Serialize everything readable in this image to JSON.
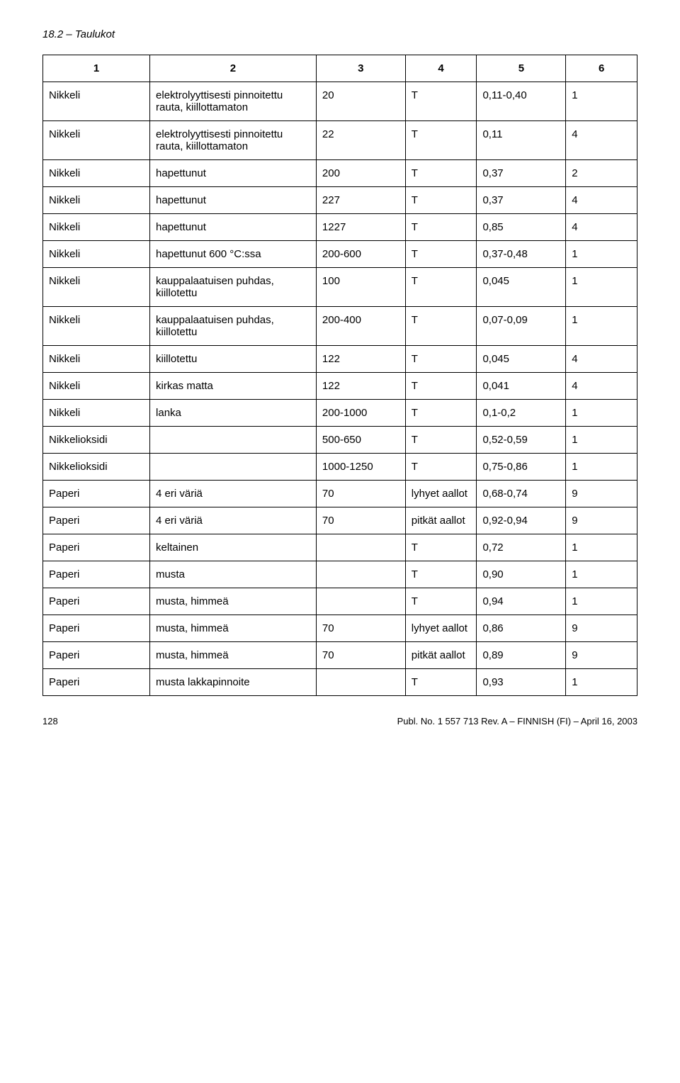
{
  "header": "18.2 – Taulukot",
  "table": {
    "columns": [
      "1",
      "2",
      "3",
      "4",
      "5",
      "6"
    ],
    "rows": [
      [
        "Nikkeli",
        "elektrolyyttisesti pinnoitettu rauta, kiillottamaton",
        "20",
        "T",
        "0,11-0,40",
        "1"
      ],
      [
        "Nikkeli",
        "elektrolyyttisesti pinnoitettu rauta, kiillottamaton",
        "22",
        "T",
        "0,11",
        "4"
      ],
      [
        "Nikkeli",
        "hapettunut",
        "200",
        "T",
        "0,37",
        "2"
      ],
      [
        "Nikkeli",
        "hapettunut",
        "227",
        "T",
        "0,37",
        "4"
      ],
      [
        "Nikkeli",
        "hapettunut",
        "1227",
        "T",
        "0,85",
        "4"
      ],
      [
        "Nikkeli",
        "hapettunut 600 °C:ssa",
        "200-600",
        "T",
        "0,37-0,48",
        "1"
      ],
      [
        "Nikkeli",
        "kauppalaatuisen puhdas, kiillotettu",
        "100",
        "T",
        "0,045",
        "1"
      ],
      [
        "Nikkeli",
        "kauppalaatuisen puhdas, kiillotettu",
        "200-400",
        "T",
        "0,07-0,09",
        "1"
      ],
      [
        "Nikkeli",
        "kiillotettu",
        "122",
        "T",
        "0,045",
        "4"
      ],
      [
        "Nikkeli",
        "kirkas matta",
        "122",
        "T",
        "0,041",
        "4"
      ],
      [
        "Nikkeli",
        "lanka",
        "200-1000",
        "T",
        "0,1-0,2",
        "1"
      ],
      [
        "Nikkelioksidi",
        "",
        "500-650",
        "T",
        "0,52-0,59",
        "1"
      ],
      [
        "Nikkelioksidi",
        "",
        "1000-1250",
        "T",
        "0,75-0,86",
        "1"
      ],
      [
        "Paperi",
        "4 eri väriä",
        "70",
        "lyhyet aallot",
        "0,68-0,74",
        "9"
      ],
      [
        "Paperi",
        "4 eri väriä",
        "70",
        "pitkät aallot",
        "0,92-0,94",
        "9"
      ],
      [
        "Paperi",
        "keltainen",
        "",
        "T",
        "0,72",
        "1"
      ],
      [
        "Paperi",
        "musta",
        "",
        "T",
        "0,90",
        "1"
      ],
      [
        "Paperi",
        "musta, himmeä",
        "",
        "T",
        "0,94",
        "1"
      ],
      [
        "Paperi",
        "musta, himmeä",
        "70",
        "lyhyet aallot",
        "0,86",
        "9"
      ],
      [
        "Paperi",
        "musta, himmeä",
        "70",
        "pitkät aallot",
        "0,89",
        "9"
      ],
      [
        "Paperi",
        "musta lakkapinnoite",
        "",
        "T",
        "0,93",
        "1"
      ]
    ]
  },
  "footer": {
    "page": "128",
    "pub": "Publ. No. 1 557 713 Rev. A – FINNISH (FI) – April 16, 2003"
  }
}
